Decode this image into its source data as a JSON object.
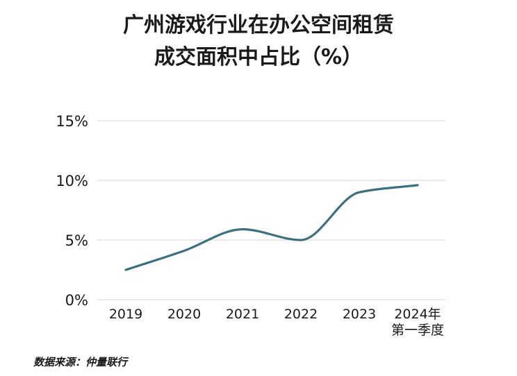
{
  "title_lines": [
    "广州游戏行业在办公空间租赁",
    "成交面积中占比（%）"
  ],
  "source": "数据来源：仲量联行",
  "colors": {
    "line": "#3b7080",
    "grid": "#d6d6d6",
    "text": "#1a1a1a"
  },
  "chart_data": {
    "type": "line",
    "title": "广州游戏行业在办公空间租赁成交面积中占比（%）",
    "categories": [
      "2019",
      "2020",
      "2021",
      "2022",
      "2023",
      "2024年\n第一季度"
    ],
    "series": [
      {
        "values": [
          2.5,
          4.1,
          5.9,
          5.0,
          9.0,
          9.6
        ]
      }
    ],
    "ylim": [
      0,
      15
    ],
    "yticks": [
      0,
      5,
      10,
      15
    ],
    "ytick_labels": [
      "0%",
      "5%",
      "10%",
      "15%"
    ],
    "grid": true
  }
}
